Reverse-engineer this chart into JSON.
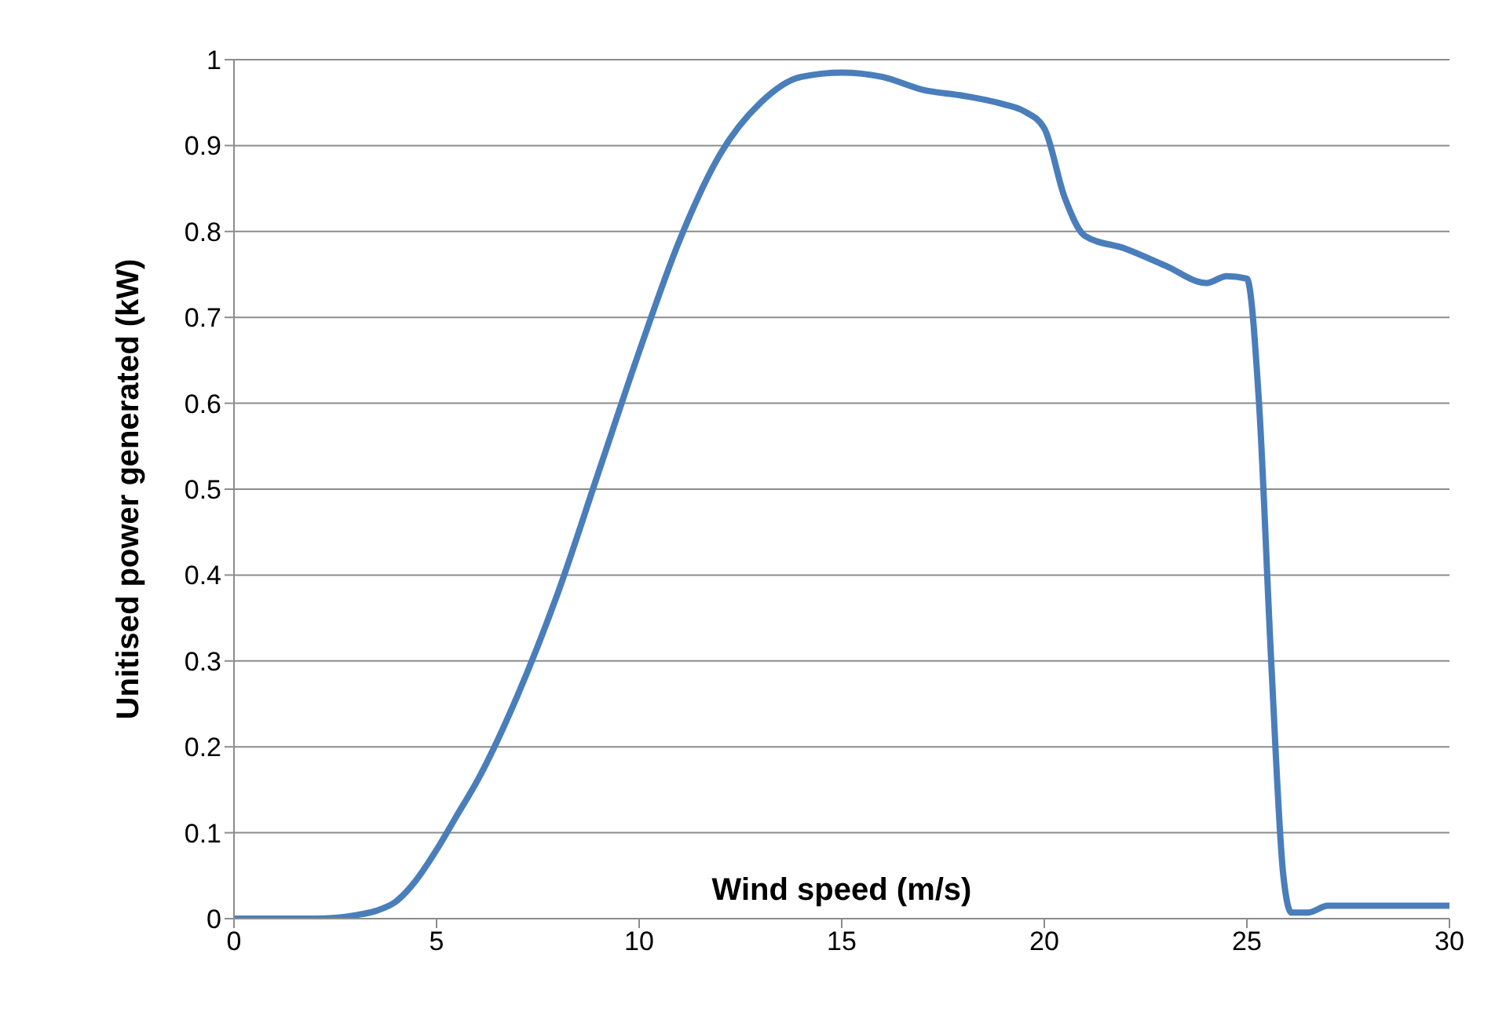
{
  "chart_data": {
    "type": "line",
    "xlabel": "Wind speed (m/s)",
    "ylabel": "Unitised power generated (kW)",
    "x": [
      0,
      1,
      2,
      2.5,
      3,
      3.5,
      4,
      4.5,
      5,
      5.5,
      6,
      7,
      8,
      9,
      10,
      11,
      12,
      13,
      14,
      15,
      16,
      17,
      18,
      19,
      19.5,
      20,
      20.5,
      21,
      22,
      23,
      24,
      24.5,
      25,
      25.3,
      25.6,
      25.9,
      26.1,
      26.5,
      27,
      28,
      29,
      30
    ],
    "series": [
      {
        "color": "#4a7ebb",
        "values": [
          0,
          0,
          0,
          0.001,
          0.004,
          0.009,
          0.02,
          0.045,
          0.08,
          0.12,
          0.16,
          0.26,
          0.38,
          0.52,
          0.66,
          0.79,
          0.89,
          0.95,
          0.98,
          0.985,
          0.98,
          0.965,
          0.958,
          0.948,
          0.94,
          0.92,
          0.84,
          0.795,
          0.78,
          0.76,
          0.74,
          0.748,
          0.745,
          0.6,
          0.3,
          0.05,
          0.007,
          0.007,
          0.015,
          0.015,
          0.015,
          0.015
        ]
      }
    ],
    "xlim": [
      0,
      30
    ],
    "xticks": [
      0,
      5,
      10,
      15,
      20,
      25,
      30
    ],
    "ylim": [
      0,
      1
    ],
    "yticks": [
      0,
      0.1,
      0.2,
      0.3,
      0.4,
      0.5,
      0.6,
      0.7,
      0.8,
      0.9,
      1
    ],
    "grid": "y",
    "marker": "none",
    "line_style": "solid"
  }
}
